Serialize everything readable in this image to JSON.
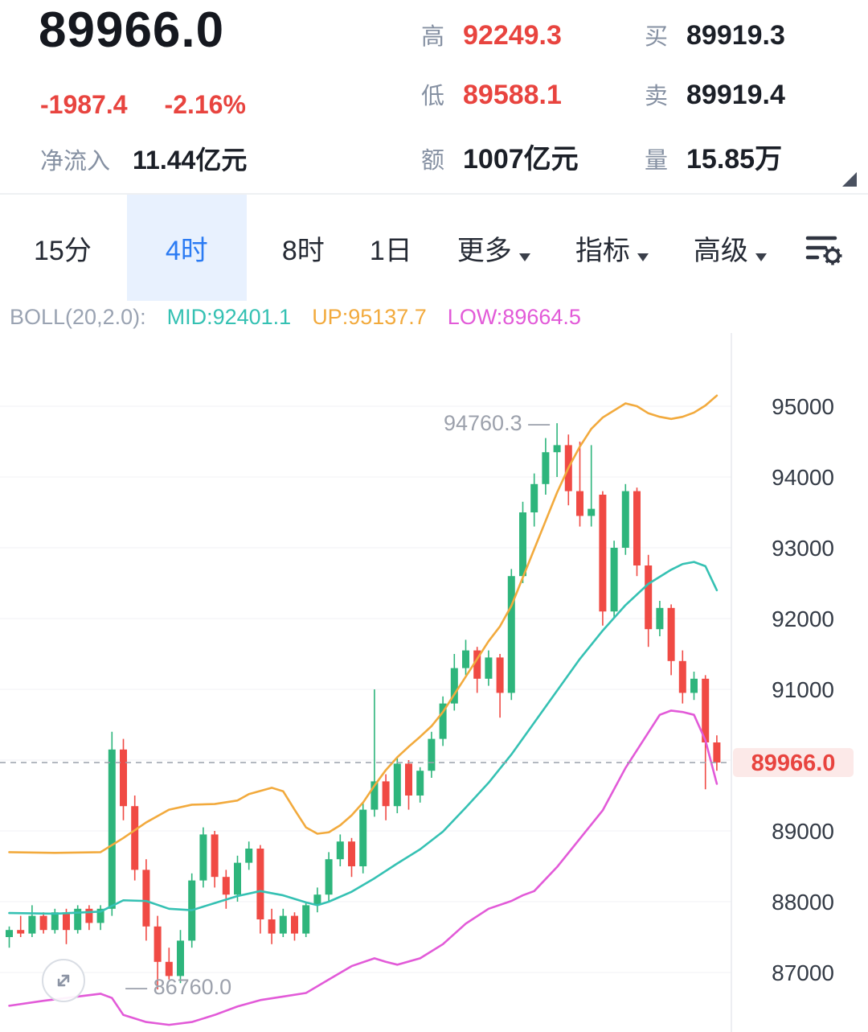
{
  "colors": {
    "red": "#E8443F",
    "green": "#2EB57C",
    "blue": "#2B7BF3",
    "dark": "#1B1F27",
    "gray": "#8590A2",
    "tab_active_bg": "#E8F1FE",
    "badge_bg": "#FCE9E8",
    "band_up": "#F2AA3D",
    "band_mid": "#35C1B3",
    "band_low": "#E25AD8",
    "candle_up": "#2EB57C",
    "candle_down": "#F04A44"
  },
  "header": {
    "price": "89966.0",
    "change": "-1987.4",
    "change_pct": "-2.16%",
    "net_inflow_label": "净流入",
    "net_inflow_value": "11.44亿元",
    "stats_col1": [
      {
        "label": "高",
        "value": "92249.3"
      },
      {
        "label": "低",
        "value": "89588.1"
      },
      {
        "label": "额",
        "value": "1007亿元"
      }
    ],
    "stats_col2": [
      {
        "label": "买",
        "value": "89919.3"
      },
      {
        "label": "卖",
        "value": "89919.4"
      },
      {
        "label": "量",
        "value": "15.85万"
      }
    ]
  },
  "tabs": [
    {
      "label": "15分",
      "active": false
    },
    {
      "label": "4时",
      "active": true
    },
    {
      "label": "8时",
      "active": false
    },
    {
      "label": "1日",
      "active": false
    },
    {
      "label": "更多",
      "has_menu": true
    },
    {
      "label": "指标",
      "has_menu": true
    },
    {
      "label": "高级",
      "has_menu": true
    }
  ],
  "indicator": {
    "name": "BOLL(20,2.0):",
    "mid_label": "MID:92401.1",
    "up_label": "UP:95137.7",
    "low_label": "LOW:89664.5"
  },
  "chart_data": {
    "type": "candlestick",
    "timeframe": "4时",
    "y_ticks": [
      95000,
      94000,
      93000,
      92000,
      91000,
      90000,
      89000,
      88000,
      87000
    ],
    "current_price": 89966.0,
    "current_price_label": "89966.0",
    "high_annotation": {
      "label": "94760.3 —",
      "price": 94760.3,
      "candle_index": 48
    },
    "low_annotation": {
      "label": "— 86760.0",
      "price": 86760.0,
      "candle_index": 13
    },
    "boll": {
      "period": 20,
      "mult": 2.0,
      "mid": 92401.1,
      "up": 95137.7,
      "low": 89664.5
    },
    "candles": [
      [
        87500,
        87650,
        87350,
        87600
      ],
      [
        87600,
        87800,
        87500,
        87550
      ],
      [
        87550,
        87950,
        87500,
        87800
      ],
      [
        87800,
        87850,
        87550,
        87600
      ],
      [
        87600,
        87900,
        87550,
        87850
      ],
      [
        87850,
        87900,
        87400,
        87600
      ],
      [
        87600,
        87950,
        87550,
        87900
      ],
      [
        87900,
        87950,
        87600,
        87700
      ],
      [
        87700,
        87950,
        87600,
        87900
      ],
      [
        87900,
        90400,
        87800,
        90150
      ],
      [
        90150,
        90300,
        89150,
        89350
      ],
      [
        89350,
        89500,
        88300,
        88450
      ],
      [
        88450,
        88600,
        87450,
        87650
      ],
      [
        87650,
        87800,
        86760,
        87150
      ],
      [
        87150,
        87350,
        86900,
        86950
      ],
      [
        86950,
        87600,
        86850,
        87450
      ],
      [
        87450,
        88400,
        87350,
        88300
      ],
      [
        88300,
        89050,
        88200,
        88950
      ],
      [
        88950,
        89000,
        88200,
        88350
      ],
      [
        88350,
        88450,
        87900,
        88100
      ],
      [
        88100,
        88650,
        88000,
        88550
      ],
      [
        88550,
        88850,
        88450,
        88750
      ],
      [
        88750,
        88800,
        87550,
        87750
      ],
      [
        87750,
        87900,
        87400,
        87550
      ],
      [
        87550,
        87900,
        87500,
        87800
      ],
      [
        87800,
        87850,
        87450,
        87550
      ],
      [
        87550,
        88000,
        87500,
        87950
      ],
      [
        87950,
        88200,
        87850,
        88100
      ],
      [
        88100,
        88700,
        88000,
        88600
      ],
      [
        88600,
        88950,
        88500,
        88850
      ],
      [
        88850,
        88900,
        88350,
        88500
      ],
      [
        88500,
        89400,
        88400,
        89300
      ],
      [
        89300,
        91000,
        89200,
        89700
      ],
      [
        89700,
        89800,
        89150,
        89350
      ],
      [
        89350,
        90050,
        89250,
        89950
      ],
      [
        89950,
        90000,
        89300,
        89500
      ],
      [
        89500,
        89900,
        89400,
        89850
      ],
      [
        89850,
        90400,
        89750,
        90300
      ],
      [
        90300,
        90900,
        90200,
        90800
      ],
      [
        90800,
        91500,
        90700,
        91300
      ],
      [
        91300,
        91700,
        91200,
        91550
      ],
      [
        91550,
        91600,
        90950,
        91150
      ],
      [
        91150,
        91550,
        91050,
        91450
      ],
      [
        91450,
        91500,
        90600,
        90950
      ],
      [
        90950,
        92700,
        90850,
        92600
      ],
      [
        92600,
        93650,
        92500,
        93500
      ],
      [
        93500,
        94050,
        93300,
        93900
      ],
      [
        93900,
        94550,
        93750,
        94350
      ],
      [
        94350,
        94760,
        94000,
        94450
      ],
      [
        94450,
        94600,
        93600,
        93800
      ],
      [
        93800,
        94500,
        93300,
        93450
      ],
      [
        93450,
        94450,
        93300,
        93550
      ],
      [
        93750,
        93800,
        91900,
        92100
      ],
      [
        92100,
        93100,
        92000,
        93000
      ],
      [
        93000,
        93900,
        92900,
        93800
      ],
      [
        93800,
        93850,
        92600,
        92750
      ],
      [
        92750,
        92900,
        91600,
        91850
      ],
      [
        91850,
        92250,
        91750,
        92150
      ],
      [
        92150,
        92200,
        91200,
        91400
      ],
      [
        91400,
        91550,
        90800,
        90950
      ],
      [
        90950,
        91250,
        90850,
        91150
      ],
      [
        91150,
        91200,
        89588,
        90250
      ],
      [
        90250,
        90350,
        89850,
        89966
      ]
    ],
    "bands": {
      "up": {
        "name": "BOLL upper band",
        "color": "#F2AA3D",
        "points": [
          [
            0,
            88700
          ],
          [
            4,
            88690
          ],
          [
            8,
            88700
          ],
          [
            10,
            88900
          ],
          [
            12,
            89120
          ],
          [
            14,
            89300
          ],
          [
            16,
            89370
          ],
          [
            18,
            89380
          ],
          [
            20,
            89430
          ],
          [
            21,
            89520
          ],
          [
            23,
            89610
          ],
          [
            24,
            89560
          ],
          [
            25,
            89300
          ],
          [
            26,
            89050
          ],
          [
            27,
            88960
          ],
          [
            28,
            88980
          ],
          [
            29,
            89080
          ],
          [
            30,
            89220
          ],
          [
            31,
            89400
          ],
          [
            32,
            89640
          ],
          [
            33,
            89860
          ],
          [
            34,
            90040
          ],
          [
            35,
            90190
          ],
          [
            36,
            90330
          ],
          [
            37,
            90480
          ],
          [
            38,
            90680
          ],
          [
            39,
            90930
          ],
          [
            40,
            91180
          ],
          [
            41,
            91430
          ],
          [
            42,
            91680
          ],
          [
            43,
            91890
          ],
          [
            44,
            92180
          ],
          [
            45,
            92580
          ],
          [
            46,
            92980
          ],
          [
            47,
            93380
          ],
          [
            48,
            93780
          ],
          [
            49,
            94130
          ],
          [
            50,
            94430
          ],
          [
            51,
            94680
          ],
          [
            52,
            94840
          ],
          [
            53,
            94940
          ],
          [
            54,
            95040
          ],
          [
            55,
            95000
          ],
          [
            56,
            94900
          ],
          [
            57,
            94850
          ],
          [
            58,
            94820
          ],
          [
            59,
            94850
          ],
          [
            60,
            94910
          ],
          [
            61,
            95010
          ],
          [
            62,
            95150
          ]
        ]
      },
      "mid": {
        "name": "BOLL middle band",
        "color": "#35C1B3",
        "points": [
          [
            0,
            87840
          ],
          [
            4,
            87830
          ],
          [
            8,
            87860
          ],
          [
            10,
            88020
          ],
          [
            12,
            88010
          ],
          [
            14,
            87900
          ],
          [
            16,
            87880
          ],
          [
            18,
            87980
          ],
          [
            20,
            88080
          ],
          [
            22,
            88150
          ],
          [
            24,
            88090
          ],
          [
            26,
            87990
          ],
          [
            27,
            87950
          ],
          [
            28,
            88000
          ],
          [
            30,
            88140
          ],
          [
            32,
            88330
          ],
          [
            34,
            88540
          ],
          [
            36,
            88740
          ],
          [
            38,
            88990
          ],
          [
            40,
            89330
          ],
          [
            42,
            89680
          ],
          [
            44,
            90080
          ],
          [
            46,
            90530
          ],
          [
            48,
            90980
          ],
          [
            50,
            91430
          ],
          [
            52,
            91830
          ],
          [
            54,
            92190
          ],
          [
            56,
            92490
          ],
          [
            58,
            92690
          ],
          [
            59,
            92770
          ],
          [
            60,
            92800
          ],
          [
            61,
            92740
          ],
          [
            62,
            92400
          ]
        ]
      },
      "low": {
        "name": "BOLL lower band",
        "color": "#E25AD8",
        "points": [
          [
            0,
            86530
          ],
          [
            3,
            86600
          ],
          [
            6,
            86660
          ],
          [
            8,
            86700
          ],
          [
            9,
            86640
          ],
          [
            10,
            86400
          ],
          [
            12,
            86300
          ],
          [
            14,
            86260
          ],
          [
            16,
            86300
          ],
          [
            18,
            86400
          ],
          [
            20,
            86520
          ],
          [
            22,
            86610
          ],
          [
            24,
            86660
          ],
          [
            26,
            86710
          ],
          [
            28,
            86900
          ],
          [
            30,
            87090
          ],
          [
            32,
            87200
          ],
          [
            33,
            87150
          ],
          [
            34,
            87110
          ],
          [
            36,
            87200
          ],
          [
            38,
            87400
          ],
          [
            40,
            87690
          ],
          [
            42,
            87900
          ],
          [
            44,
            88010
          ],
          [
            45,
            88090
          ],
          [
            46,
            88150
          ],
          [
            48,
            88490
          ],
          [
            50,
            88890
          ],
          [
            52,
            89290
          ],
          [
            54,
            89890
          ],
          [
            56,
            90390
          ],
          [
            57,
            90640
          ],
          [
            58,
            90700
          ],
          [
            59,
            90680
          ],
          [
            60,
            90640
          ],
          [
            61,
            90280
          ],
          [
            62,
            89665
          ]
        ]
      }
    }
  }
}
